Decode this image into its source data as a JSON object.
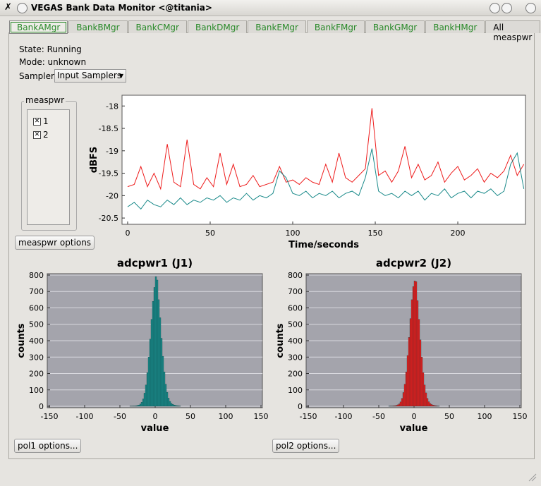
{
  "window": {
    "title": "VEGAS Bank Data Monitor <@titania>"
  },
  "tabs": [
    "BankAMgr",
    "BankBMgr",
    "BankCMgr",
    "BankDMgr",
    "BankEMgr",
    "BankFMgr",
    "BankGMgr",
    "BankHMgr",
    "All measpwr"
  ],
  "status": {
    "state": "State: Running",
    "mode": "Mode: unknown",
    "sampler_label": "Sampler:",
    "sampler_value": "Input Samplers"
  },
  "measpwr": {
    "title": "measpwr",
    "items": [
      "1",
      "2"
    ],
    "button": "measpwr options"
  },
  "pol_buttons": [
    "pol1 options...",
    "pol2 options..."
  ],
  "chart_data": [
    {
      "type": "line",
      "xlabel": "Time/seconds",
      "ylabel": "dBFS",
      "plot_background": "#ffffff",
      "grid": false,
      "xlim": [
        -3.4,
        241
      ],
      "xticks": [
        0,
        50,
        100,
        150,
        200
      ],
      "ylim": [
        -20.64,
        -17.76
      ],
      "yticks": [
        -18,
        -18.5,
        -19,
        -19.5,
        -20,
        -20.5
      ],
      "x": [
        0,
        4,
        8,
        12,
        16,
        20,
        24,
        28,
        32,
        36,
        40,
        44,
        48,
        52,
        56,
        60,
        64,
        68,
        72,
        76,
        80,
        84,
        88,
        92,
        96,
        100,
        104,
        108,
        112,
        116,
        120,
        124,
        128,
        132,
        136,
        140,
        144,
        148,
        152,
        156,
        160,
        164,
        168,
        172,
        176,
        180,
        184,
        188,
        192,
        196,
        200,
        204,
        208,
        212,
        216,
        220,
        224,
        228,
        232,
        236,
        240
      ],
      "series": [
        {
          "name": "1",
          "color": "#ee1c1c",
          "values": [
            -19.8,
            -19.75,
            -19.35,
            -19.8,
            -19.5,
            -19.85,
            -18.85,
            -19.7,
            -19.8,
            -18.75,
            -19.75,
            -19.85,
            -19.6,
            -19.8,
            -19.05,
            -19.75,
            -19.3,
            -19.8,
            -19.75,
            -19.55,
            -19.8,
            -19.75,
            -19.7,
            -19.35,
            -19.7,
            -19.65,
            -19.75,
            -19.6,
            -19.7,
            -19.75,
            -19.3,
            -19.7,
            -19.05,
            -19.6,
            -19.7,
            -19.55,
            -19.4,
            -18.05,
            -19.55,
            -19.45,
            -19.7,
            -19.45,
            -18.9,
            -19.6,
            -19.3,
            -19.65,
            -19.55,
            -19.25,
            -19.7,
            -19.5,
            -19.35,
            -19.65,
            -19.55,
            -19.4,
            -19.7,
            -19.5,
            -19.6,
            -19.45,
            -19.1,
            -19.55,
            -19.3
          ]
        },
        {
          "name": "2",
          "color": "#1a8a8a",
          "values": [
            -20.25,
            -20.15,
            -20.3,
            -20.1,
            -20.2,
            -20.25,
            -20.1,
            -20.2,
            -20.05,
            -20.2,
            -20.1,
            -20.15,
            -20.05,
            -20.1,
            -20.0,
            -20.15,
            -20.05,
            -20.1,
            -19.95,
            -20.1,
            -20.0,
            -20.05,
            -19.95,
            -19.45,
            -19.6,
            -19.95,
            -20.0,
            -19.9,
            -20.05,
            -19.95,
            -20.0,
            -19.9,
            -20.05,
            -19.95,
            -19.9,
            -20.0,
            -19.6,
            -18.95,
            -19.9,
            -20.0,
            -19.95,
            -20.05,
            -19.9,
            -20.0,
            -19.9,
            -20.1,
            -19.95,
            -20.0,
            -19.85,
            -20.05,
            -19.95,
            -19.9,
            -20.05,
            -19.9,
            -19.95,
            -19.85,
            -20.0,
            -19.9,
            -19.3,
            -19.05,
            -19.85
          ]
        }
      ]
    },
    {
      "type": "histogram",
      "title": "adcpwr1 (J1)",
      "xlabel": "value",
      "ylabel": "counts",
      "color": "#1a8a8a",
      "plot_background": "#a4a4ac",
      "grid": true,
      "xlim": [
        -153,
        152
      ],
      "xticks": [
        -150,
        -100,
        -50,
        0,
        50,
        100,
        150
      ],
      "ylim": [
        -8.6,
        808.6
      ],
      "yticks": [
        0,
        100,
        200,
        300,
        400,
        500,
        600,
        700,
        800
      ],
      "bins": [
        -36,
        -34,
        -32,
        -30,
        -28,
        -26,
        -24,
        -22,
        -20,
        -18,
        -16,
        -14,
        -12,
        -10,
        -8,
        -6,
        -4,
        -2,
        0,
        2,
        4,
        6,
        8,
        10,
        12,
        14,
        16,
        18,
        20,
        22,
        24,
        26,
        28,
        30,
        32,
        34,
        36
      ],
      "values": [
        1,
        1,
        2,
        2,
        3,
        5,
        8,
        14,
        25,
        45,
        80,
        130,
        205,
        300,
        410,
        530,
        640,
        725,
        790,
        770,
        650,
        540,
        415,
        305,
        210,
        135,
        85,
        50,
        30,
        18,
        12,
        8,
        6,
        4,
        3,
        2
      ]
    },
    {
      "type": "histogram",
      "title": "adcpwr2 (J2)",
      "xlabel": "value",
      "ylabel": "counts",
      "color": "#ee1c1c",
      "plot_background": "#a4a4ac",
      "grid": true,
      "xlim": [
        -153,
        152
      ],
      "xticks": [
        -150,
        -100,
        -50,
        0,
        50,
        100,
        150
      ],
      "ylim": [
        -8.6,
        808.6
      ],
      "yticks": [
        0,
        100,
        200,
        300,
        400,
        500,
        600,
        700,
        800
      ],
      "bins": [
        -36,
        -34,
        -32,
        -30,
        -28,
        -26,
        -24,
        -22,
        -20,
        -18,
        -16,
        -14,
        -12,
        -10,
        -8,
        -6,
        -4,
        -2,
        0,
        2,
        4,
        6,
        8,
        10,
        12,
        14,
        16,
        18,
        20,
        22,
        24,
        26,
        28,
        30,
        32,
        34,
        36
      ],
      "values": [
        1,
        2,
        2,
        3,
        4,
        6,
        9,
        15,
        27,
        48,
        84,
        135,
        210,
        310,
        420,
        535,
        650,
        730,
        765,
        760,
        645,
        530,
        405,
        300,
        205,
        130,
        82,
        48,
        28,
        17,
        11,
        7,
        5,
        4,
        2,
        1
      ]
    }
  ]
}
